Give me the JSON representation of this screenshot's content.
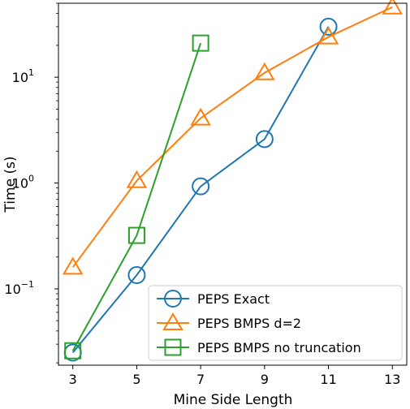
{
  "chart_data": {
    "type": "line",
    "xlabel": "Mine Side Length",
    "ylabel": "Time (s)",
    "yscale": "log",
    "xlim": [
      2.55,
      13.45
    ],
    "ylim": [
      0.019,
      50
    ],
    "x_ticks": [
      3,
      5,
      7,
      9,
      11,
      13
    ],
    "y_ticks": [
      {
        "value": 0.1,
        "base": "10",
        "exp": "−1"
      },
      {
        "value": 1,
        "base": "10",
        "exp": "0"
      },
      {
        "value": 10,
        "base": "10",
        "exp": "1"
      }
    ],
    "legend_position": "lower-right",
    "grid": false,
    "series": [
      {
        "name": "PEPS Exact",
        "color": "#1f77b4",
        "marker": "circle",
        "x": [
          3,
          5,
          7,
          9,
          11
        ],
        "y": [
          0.025,
          0.135,
          0.93,
          2.6,
          30
        ]
      },
      {
        "name": "PEPS BMPS d=2",
        "color": "#ff7f0e",
        "marker": "triangle",
        "x": [
          3,
          5,
          7,
          9,
          11,
          13
        ],
        "y": [
          0.16,
          1.05,
          4.1,
          11,
          24,
          46
        ]
      },
      {
        "name": "PEPS BMPS no truncation",
        "color": "#2ca02c",
        "marker": "square",
        "x": [
          3,
          5,
          7
        ],
        "y": [
          0.026,
          0.32,
          21
        ]
      }
    ]
  }
}
